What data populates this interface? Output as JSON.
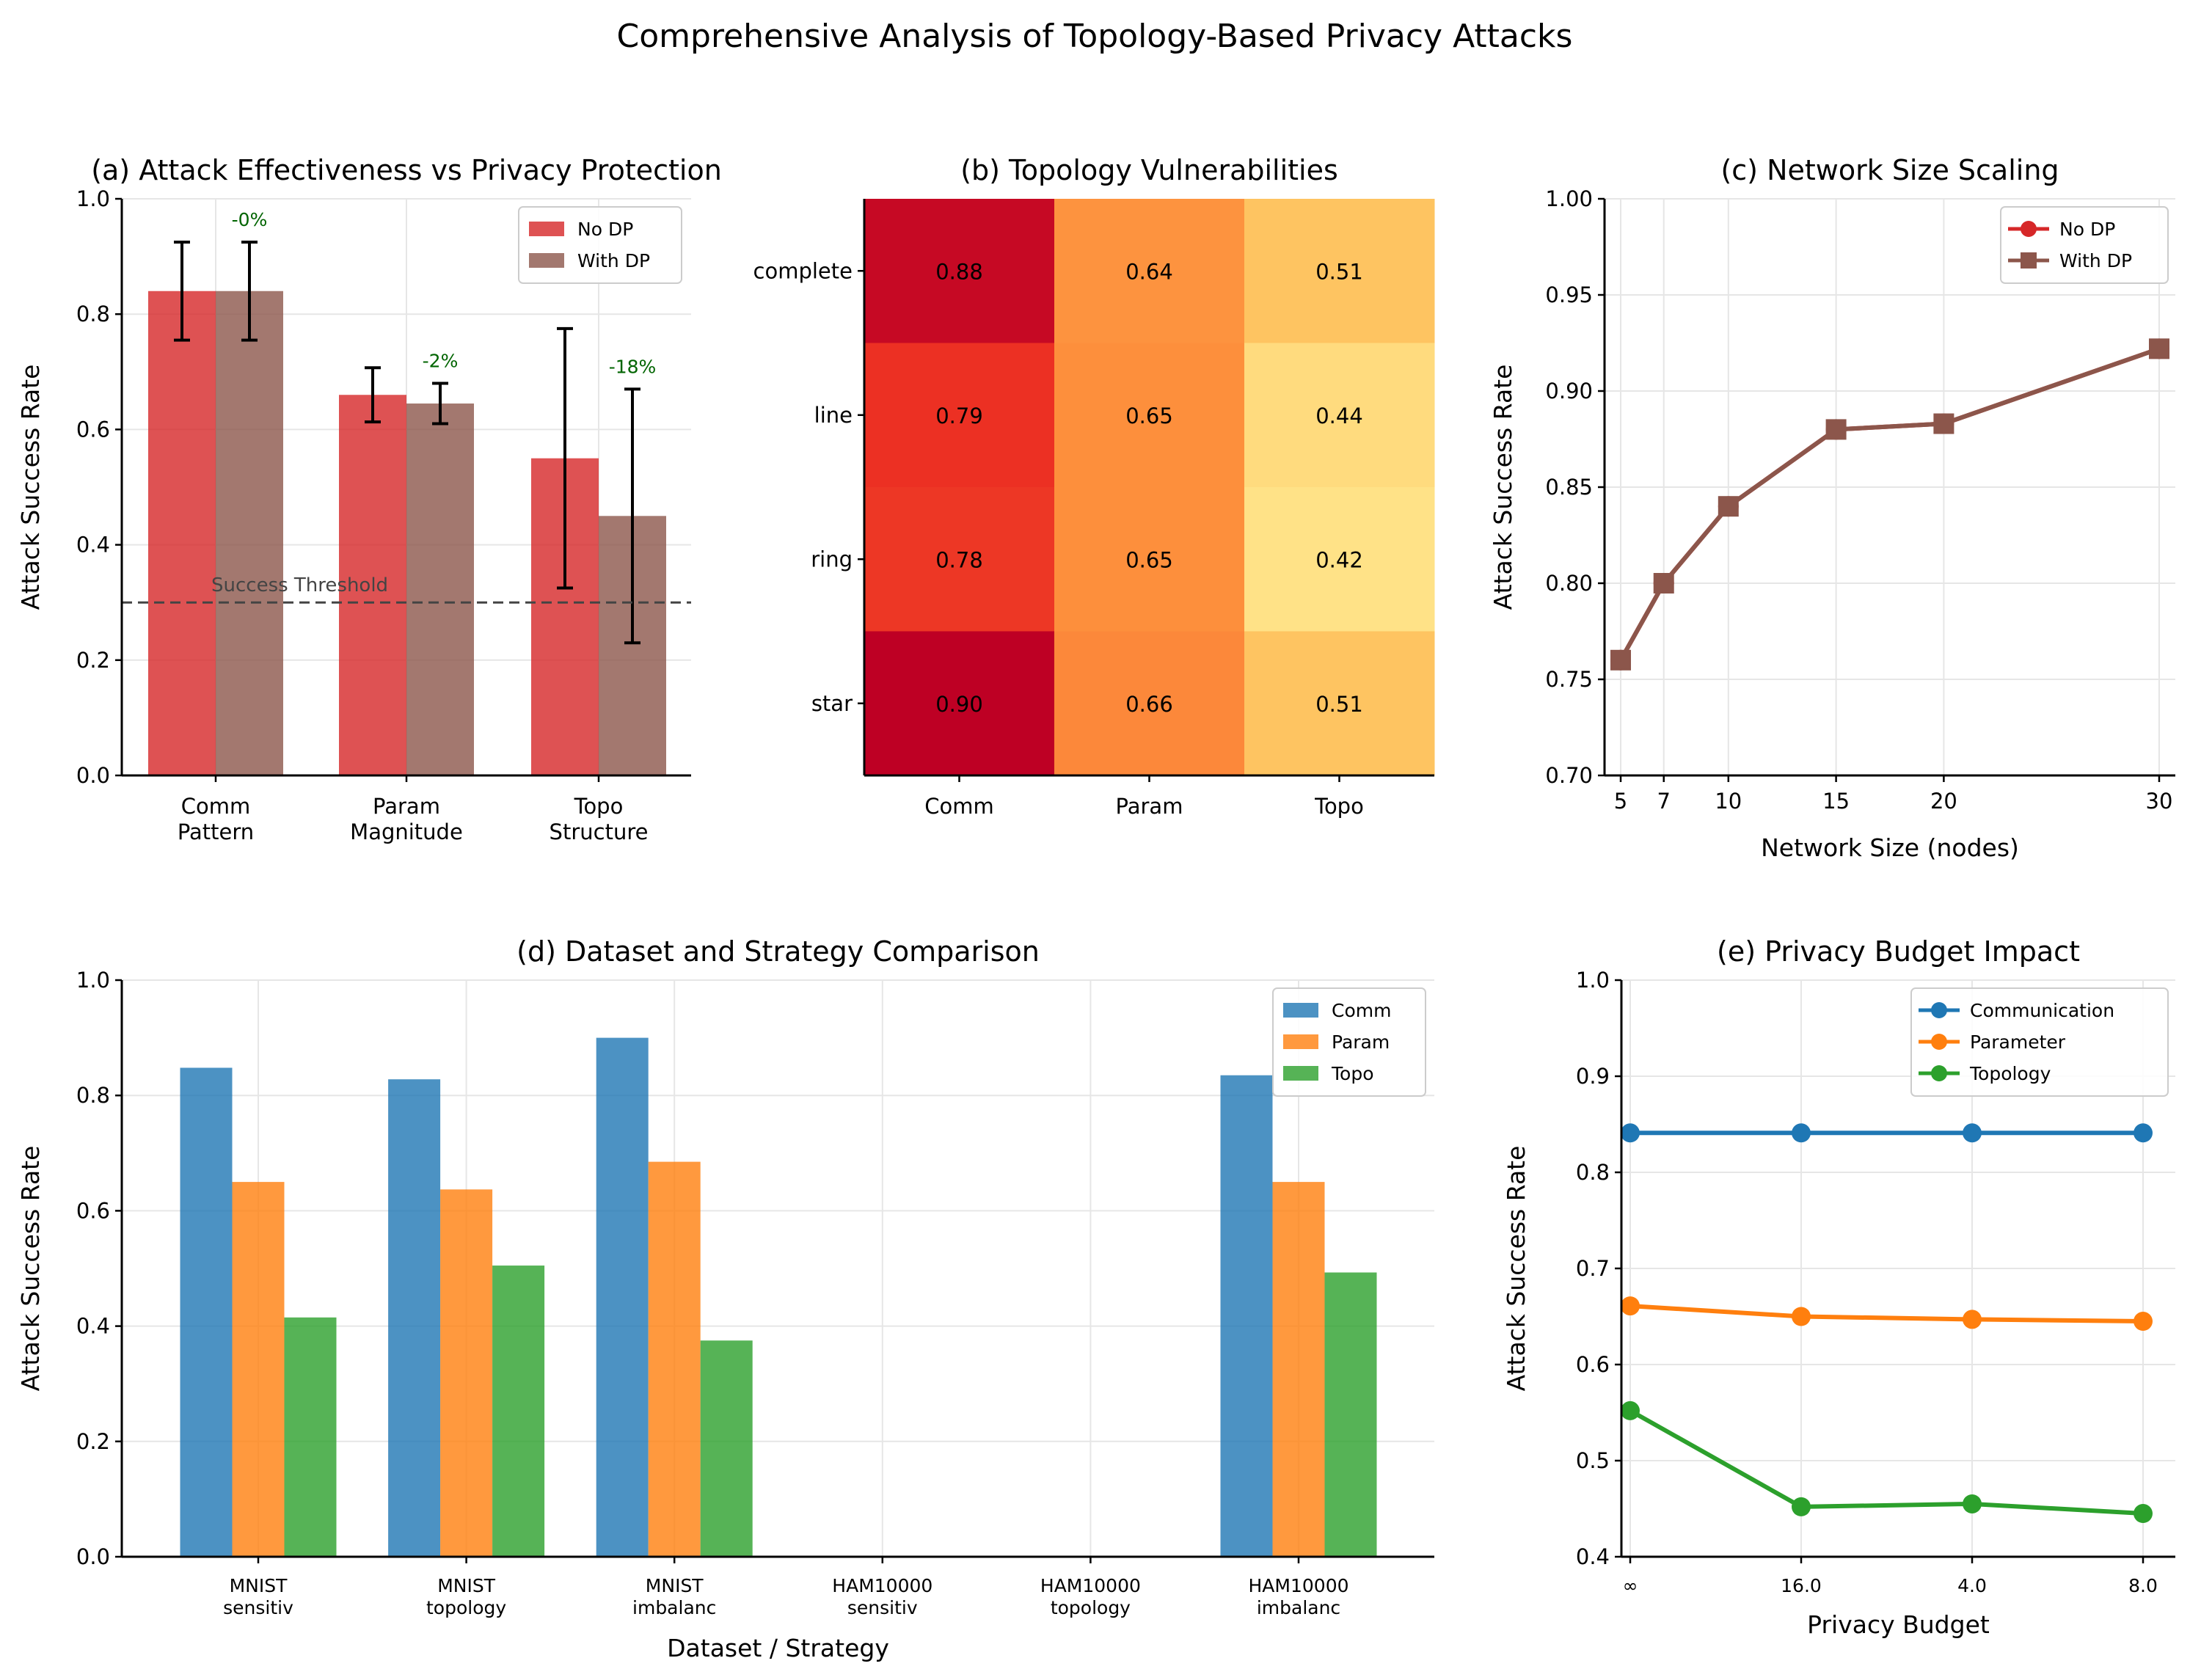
{
  "figure": {
    "suptitle": "Comprehensive Analysis of Topology-Based Privacy Attacks"
  },
  "colors": {
    "no_dp": "#d62728",
    "with_dp": "#8c564b",
    "comm": "#1f77b4",
    "param": "#ff7f0e",
    "topo": "#2ca02c",
    "threshold": "#444444",
    "reduction_label": "#006400"
  },
  "chart_data": [
    {
      "id": "a",
      "type": "bar",
      "title": "(a) Attack Effectiveness vs Privacy Protection",
      "xlabel": "",
      "ylabel": "Attack Success Rate",
      "categories": [
        "Comm\nPattern",
        "Param\nMagnitude",
        "Topo\nStructure"
      ],
      "series": [
        {
          "name": "No DP",
          "values": [
            0.84,
            0.66,
            0.55
          ],
          "errors": [
            0.085,
            0.047,
            0.225
          ]
        },
        {
          "name": "With DP",
          "values": [
            0.84,
            0.645,
            0.45
          ],
          "errors": [
            0.085,
            0.035,
            0.22
          ]
        }
      ],
      "reduction_labels": [
        "-0%",
        "-2%",
        "-18%"
      ],
      "threshold": {
        "value": 0.3,
        "label": "Success Threshold"
      },
      "ylim": [
        0,
        1.0
      ],
      "yticks": [
        0.0,
        0.2,
        0.4,
        0.6,
        0.8,
        1.0
      ],
      "grid": true,
      "legend": "top-right"
    },
    {
      "id": "b",
      "type": "heatmap",
      "title": "(b) Topology Vulnerabilities",
      "columns": [
        "Comm",
        "Param",
        "Topo"
      ],
      "rows": [
        "complete",
        "line",
        "ring",
        "star"
      ],
      "values": [
        [
          0.88,
          0.64,
          0.51
        ],
        [
          0.79,
          0.65,
          0.44
        ],
        [
          0.78,
          0.65,
          0.42
        ],
        [
          0.9,
          0.66,
          0.51
        ]
      ],
      "value_labels": [
        [
          "0.88",
          "0.64",
          "0.51"
        ],
        [
          "0.79",
          "0.65",
          "0.44"
        ],
        [
          "0.78",
          "0.65",
          "0.42"
        ],
        [
          "0.90",
          "0.66",
          "0.51"
        ]
      ],
      "colormap": "YlOrRd"
    },
    {
      "id": "c",
      "type": "line",
      "title": "(c) Network Size Scaling",
      "xlabel": "Network Size (nodes)",
      "ylabel": "Attack Success Rate",
      "x": [
        5,
        7,
        10,
        15,
        20,
        30
      ],
      "series": [
        {
          "name": "No DP",
          "values": [
            0.76,
            0.8,
            0.84,
            0.88,
            0.883,
            0.922
          ],
          "marker": "circle"
        },
        {
          "name": "With DP",
          "values": [
            0.76,
            0.8,
            0.84,
            0.88,
            0.883,
            0.922
          ],
          "marker": "square"
        }
      ],
      "xticks": [
        5,
        7,
        10,
        15,
        20,
        30
      ],
      "xlim": [
        4.25,
        30.75
      ],
      "ylim": [
        0.7,
        1.0
      ],
      "yticks": [
        "0.70",
        "0.75",
        "0.80",
        "0.85",
        "0.90",
        "0.95",
        "1.00"
      ],
      "grid": true,
      "legend": "top-right"
    },
    {
      "id": "d",
      "type": "bar",
      "title": "(d) Dataset and Strategy Comparison",
      "xlabel": "Dataset / Strategy",
      "ylabel": "Attack Success Rate",
      "categories": [
        "MNIST\nsensitiv",
        "MNIST\ntopology",
        "MNIST\nimbalanc",
        "HAM10000\nsensitiv",
        "HAM10000\ntopology",
        "HAM10000\nimbalanc"
      ],
      "series": [
        {
          "name": "Comm",
          "values": [
            0.848,
            0.828,
            0.9,
            0,
            0,
            0.835
          ]
        },
        {
          "name": "Param",
          "values": [
            0.65,
            0.637,
            0.685,
            0,
            0,
            0.65
          ]
        },
        {
          "name": "Topo",
          "values": [
            0.415,
            0.505,
            0.375,
            0,
            0,
            0.493
          ]
        }
      ],
      "ylim": [
        0,
        1.0
      ],
      "yticks": [
        "0.0",
        "0.2",
        "0.4",
        "0.6",
        "0.8",
        "1.0"
      ],
      "grid": true,
      "legend": "top-right"
    },
    {
      "id": "e",
      "type": "line",
      "title": "(e) Privacy Budget Impact",
      "xlabel": "Privacy Budget",
      "ylabel": "Attack Success Rate",
      "categories": [
        "∞",
        "16.0",
        "4.0",
        "8.0"
      ],
      "series": [
        {
          "name": "Communication",
          "values": [
            0.841,
            0.841,
            0.841,
            0.841
          ]
        },
        {
          "name": "Parameter",
          "values": [
            0.661,
            0.65,
            0.647,
            0.645
          ]
        },
        {
          "name": "Topology",
          "values": [
            0.552,
            0.452,
            0.455,
            0.445
          ]
        }
      ],
      "ylim": [
        0.4,
        1.0
      ],
      "yticks": [
        "0.4",
        "0.5",
        "0.6",
        "0.7",
        "0.8",
        "0.9",
        "1.0"
      ],
      "grid": true,
      "legend": "top-right"
    }
  ]
}
